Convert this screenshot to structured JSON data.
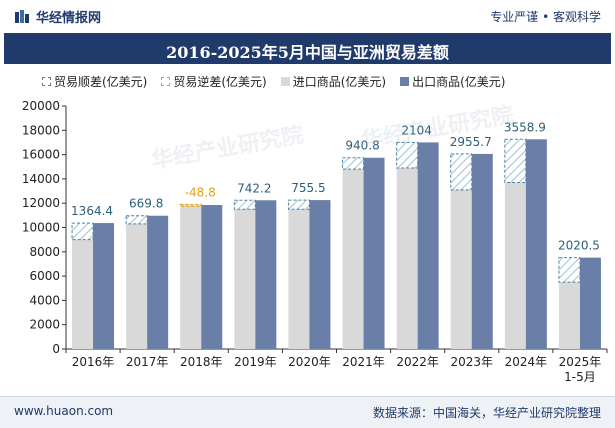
{
  "header": {
    "brand_name": "华经情报网",
    "slogan": "专业严谨 • 客观科学"
  },
  "chart_data": {
    "type": "bar",
    "title": "2016-2025年5月中国与亚洲贸易差额",
    "categories": [
      "2016年",
      "2017年",
      "2018年",
      "2019年",
      "2020年",
      "2021年",
      "2022年",
      "2023年",
      "2024年",
      "2025年\n1-5月"
    ],
    "category_lines": [
      [
        "2016年"
      ],
      [
        "2017年"
      ],
      [
        "2018年"
      ],
      [
        "2019年"
      ],
      [
        "2020年"
      ],
      [
        "2021年"
      ],
      [
        "2022年"
      ],
      [
        "2023年"
      ],
      [
        "2024年"
      ],
      [
        "2025年",
        "1-5月"
      ]
    ],
    "series": [
      {
        "name": "贸易顺差(亿美元)",
        "values": [
          1364.4,
          669.8,
          null,
          742.2,
          755.5,
          940.8,
          2104,
          2955.7,
          3558.9,
          2020.5
        ]
      },
      {
        "name": "贸易逆差(亿美元)",
        "values": [
          null,
          null,
          -48.8,
          null,
          null,
          null,
          null,
          null,
          null,
          null
        ]
      },
      {
        "name": "进口商品(亿美元)",
        "values": [
          9000,
          10300,
          11900,
          11500,
          11500,
          14800,
          14900,
          13100,
          13700,
          5500
        ]
      },
      {
        "name": "出口商品(亿美元)",
        "values": [
          10364.4,
          10969.8,
          11851.2,
          12242.2,
          12255.5,
          15740.8,
          17004,
          16055.7,
          17258.9,
          7520.5
        ]
      }
    ],
    "data_labels": [
      "1364.4",
      "669.8",
      "-48.8",
      "742.2",
      "755.5",
      "940.8",
      "2104",
      "2955.7",
      "3558.9",
      "2020.5"
    ],
    "ylim": [
      0,
      20000
    ],
    "yticks": [
      0,
      2000,
      4000,
      6000,
      8000,
      10000,
      12000,
      14000,
      16000,
      18000,
      20000
    ],
    "grid": false,
    "legend_position": "top",
    "colors": {
      "import": "#d9d9d9",
      "export": "#6a7fa7",
      "surplus_border": "#4a82a3",
      "deficit_border": "#e0a21c",
      "label_surplus": "#2e5f7a",
      "label_deficit": "#e0a21c"
    }
  },
  "footer": {
    "site": "www.huaon.com",
    "source": "数据来源：中国海关，华经产业研究院整理"
  }
}
